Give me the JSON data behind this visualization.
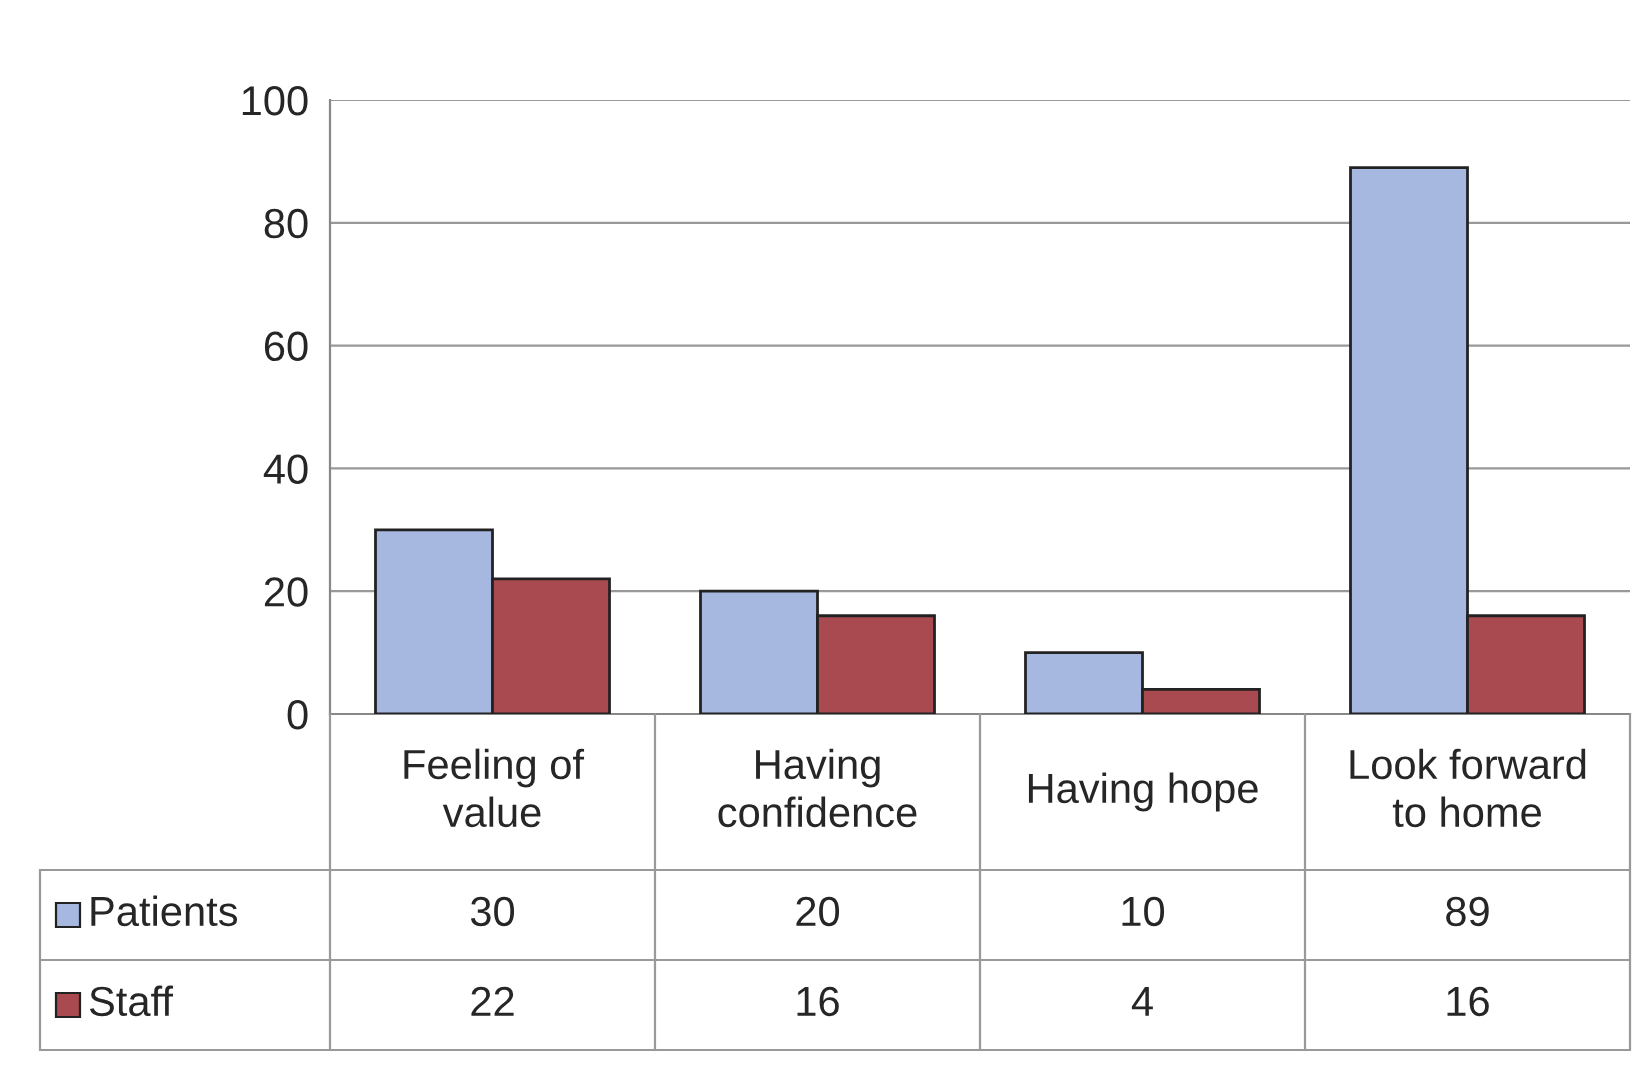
{
  "chart_data": {
    "type": "bar",
    "categories": [
      "Feeling of\nvalue",
      "Having\nconfidence",
      "Having hope",
      "Look forward\nto home"
    ],
    "series": [
      {
        "name": "Patients",
        "color": "#a6b8e0",
        "values": [
          30,
          20,
          10,
          89
        ]
      },
      {
        "name": "Staff",
        "color": "#a84a50",
        "values": [
          22,
          16,
          4,
          16
        ]
      }
    ],
    "ylim": [
      0,
      100
    ],
    "yticks": [
      0,
      20,
      40,
      60,
      80,
      100
    ],
    "grid": "y",
    "legend": "bottom left",
    "data_labels": true
  }
}
